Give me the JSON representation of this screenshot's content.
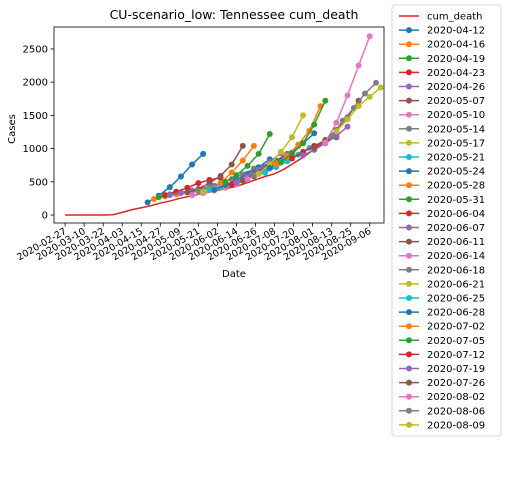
{
  "chart_data": {
    "type": "line",
    "title": "CU-scenario_low: Tennessee cum_death",
    "xlabel": "Date",
    "ylabel": "Cases",
    "ylim": [
      -120,
      2830
    ],
    "xlim": [
      "2020-02-20",
      "2020-09-15"
    ],
    "yticks": [
      0,
      500,
      1000,
      1500,
      2000,
      2500
    ],
    "xtick_labels": [
      "2020-02-27",
      "2020-03-10",
      "2020-03-22",
      "2020-04-03",
      "2020-04-15",
      "2020-04-27",
      "2020-05-09",
      "2020-05-21",
      "2020-06-02",
      "2020-06-14",
      "2020-06-26",
      "2020-07-08",
      "2020-07-20",
      "2020-08-01",
      "2020-08-13",
      "2020-08-25",
      "2020-09-06"
    ],
    "grid": false,
    "legend_position": "outside-right",
    "series": [
      {
        "name": "cum_death",
        "color": "#d62728",
        "marker": false,
        "x": [
          "2020-02-27",
          "2020-03-10",
          "2020-03-22",
          "2020-03-28",
          "2020-04-03",
          "2020-04-10",
          "2020-04-15",
          "2020-04-21",
          "2020-04-27",
          "2020-05-03",
          "2020-05-09",
          "2020-05-15",
          "2020-05-21",
          "2020-05-27",
          "2020-06-02",
          "2020-06-08",
          "2020-06-14",
          "2020-06-20",
          "2020-06-26",
          "2020-07-02",
          "2020-07-08",
          "2020-07-14",
          "2020-07-20",
          "2020-07-26",
          "2020-08-01",
          "2020-08-07",
          "2020-08-13"
        ],
        "y": [
          0,
          0,
          0,
          5,
          40,
          85,
          110,
          140,
          180,
          210,
          250,
          280,
          310,
          340,
          370,
          400,
          430,
          480,
          530,
          580,
          620,
          690,
          780,
          870,
          970,
          1080,
          1180
        ]
      },
      {
        "name": "2020-04-12",
        "color": "#1f77b4",
        "x": [
          "2020-04-19",
          "2020-04-26",
          "2020-05-03",
          "2020-05-10",
          "2020-05-17",
          "2020-05-24"
        ],
        "y": [
          190,
          290,
          420,
          580,
          760,
          920
        ]
      },
      {
        "name": "2020-04-16",
        "color": "#ff7f0e",
        "x": [
          "2020-04-23",
          "2020-04-30",
          "2020-05-07",
          "2020-05-14",
          "2020-05-21",
          "2020-05-28"
        ],
        "y": [
          240,
          280,
          310,
          340,
          370,
          410
        ]
      },
      {
        "name": "2020-04-19",
        "color": "#2ca02c",
        "x": [
          "2020-04-26",
          "2020-05-03",
          "2020-05-10",
          "2020-05-17",
          "2020-05-24",
          "2020-05-31"
        ],
        "y": [
          270,
          310,
          340,
          370,
          400,
          430
        ]
      },
      {
        "name": "2020-04-23",
        "color": "#d62728",
        "x": [
          "2020-04-30",
          "2020-05-07",
          "2020-05-14",
          "2020-05-21",
          "2020-05-28",
          "2020-06-04"
        ],
        "y": [
          300,
          350,
          410,
          480,
          530,
          560
        ]
      },
      {
        "name": "2020-04-26",
        "color": "#9467bd",
        "x": [
          "2020-05-03",
          "2020-05-10",
          "2020-05-17",
          "2020-05-24",
          "2020-05-31",
          "2020-06-07"
        ],
        "y": [
          300,
          330,
          360,
          400,
          440,
          490
        ]
      },
      {
        "name": "2020-05-07",
        "color": "#8c564b",
        "x": [
          "2020-05-14",
          "2020-05-21",
          "2020-05-28",
          "2020-06-04",
          "2020-06-11",
          "2020-06-18"
        ],
        "y": [
          340,
          390,
          480,
          590,
          760,
          1040
        ]
      },
      {
        "name": "2020-05-10",
        "color": "#e377c2",
        "x": [
          "2020-05-17",
          "2020-05-24",
          "2020-05-31",
          "2020-06-07",
          "2020-06-14",
          "2020-06-21"
        ],
        "y": [
          300,
          330,
          370,
          410,
          460,
          540
        ]
      },
      {
        "name": "2020-05-14",
        "color": "#7f7f7f",
        "x": [
          "2020-05-21",
          "2020-05-28",
          "2020-06-04",
          "2020-06-11",
          "2020-06-18",
          "2020-06-25"
        ],
        "y": [
          360,
          420,
          480,
          540,
          610,
          700
        ]
      },
      {
        "name": "2020-05-17",
        "color": "#bcbd22",
        "x": [
          "2020-05-24",
          "2020-05-31",
          "2020-06-07",
          "2020-06-14",
          "2020-06-21",
          "2020-06-28"
        ],
        "y": [
          350,
          390,
          440,
          500,
          570,
          660
        ]
      },
      {
        "name": "2020-05-21",
        "color": "#17becf",
        "x": [
          "2020-05-28",
          "2020-06-04",
          "2020-06-11",
          "2020-06-18",
          "2020-06-25",
          "2020-07-02"
        ],
        "y": [
          380,
          420,
          460,
          520,
          580,
          640
        ]
      },
      {
        "name": "2020-05-24",
        "color": "#1f77b4",
        "x": [
          "2020-05-31",
          "2020-06-07",
          "2020-06-14",
          "2020-06-21",
          "2020-06-28",
          "2020-07-05"
        ],
        "y": [
          380,
          450,
          530,
          620,
          720,
          840
        ]
      },
      {
        "name": "2020-05-28",
        "color": "#ff7f0e",
        "x": [
          "2020-06-04",
          "2020-06-11",
          "2020-06-18",
          "2020-06-25"
        ],
        "y": [
          480,
          640,
          820,
          1040
        ]
      },
      {
        "name": "2020-05-31",
        "color": "#2ca02c",
        "x": [
          "2020-06-07",
          "2020-06-14",
          "2020-06-21",
          "2020-06-28",
          "2020-07-05"
        ],
        "y": [
          500,
          600,
          740,
          920,
          1220
        ]
      },
      {
        "name": "2020-06-04",
        "color": "#d62728",
        "x": [
          "2020-06-11",
          "2020-06-18",
          "2020-06-25",
          "2020-07-02",
          "2020-07-09"
        ],
        "y": [
          460,
          520,
          590,
          660,
          740
        ]
      },
      {
        "name": "2020-06-07",
        "color": "#9467bd",
        "x": [
          "2020-06-14",
          "2020-06-21",
          "2020-06-28",
          "2020-07-05",
          "2020-07-12"
        ],
        "y": [
          490,
          580,
          680,
          800,
          930
        ]
      },
      {
        "name": "2020-06-11",
        "color": "#8c564b",
        "x": [
          "2020-06-18",
          "2020-06-25",
          "2020-07-02",
          "2020-07-09",
          "2020-07-16"
        ],
        "y": [
          520,
          620,
          720,
          820,
          920
        ]
      },
      {
        "name": "2020-06-14",
        "color": "#e377c2",
        "x": [
          "2020-06-21",
          "2020-06-28",
          "2020-07-05",
          "2020-07-12",
          "2020-07-19"
        ],
        "y": [
          540,
          620,
          700,
          790,
          880
        ]
      },
      {
        "name": "2020-06-18",
        "color": "#7f7f7f",
        "x": [
          "2020-06-25",
          "2020-07-02",
          "2020-07-09",
          "2020-07-16",
          "2020-07-23"
        ],
        "y": [
          600,
          690,
          790,
          910,
          1040
        ]
      },
      {
        "name": "2020-06-21",
        "color": "#bcbd22",
        "x": [
          "2020-06-28",
          "2020-07-05",
          "2020-07-12",
          "2020-07-19",
          "2020-07-26"
        ],
        "y": [
          620,
          760,
          950,
          1170,
          1500
        ]
      },
      {
        "name": "2020-06-25",
        "color": "#17becf",
        "x": [
          "2020-07-02",
          "2020-07-09",
          "2020-07-16",
          "2020-07-23",
          "2020-07-30"
        ],
        "y": [
          640,
          720,
          810,
          910,
          1010
        ]
      },
      {
        "name": "2020-06-28",
        "color": "#1f77b4",
        "x": [
          "2020-07-05",
          "2020-07-12",
          "2020-07-19",
          "2020-07-26",
          "2020-08-02"
        ],
        "y": [
          710,
          820,
          940,
          1080,
          1230
        ]
      },
      {
        "name": "2020-07-02",
        "color": "#ff7f0e",
        "x": [
          "2020-07-09",
          "2020-07-16",
          "2020-07-23",
          "2020-07-30",
          "2020-08-06"
        ],
        "y": [
          760,
          890,
          1060,
          1270,
          1640
        ]
      },
      {
        "name": "2020-07-05",
        "color": "#2ca02c",
        "x": [
          "2020-07-12",
          "2020-07-19",
          "2020-07-26",
          "2020-08-02",
          "2020-08-09"
        ],
        "y": [
          800,
          920,
          1080,
          1360,
          1720
        ]
      },
      {
        "name": "2020-07-12",
        "color": "#d62728",
        "x": [
          "2020-07-19",
          "2020-07-26",
          "2020-08-02",
          "2020-08-09",
          "2020-08-16"
        ],
        "y": [
          850,
          950,
          1040,
          1120,
          1170
        ]
      },
      {
        "name": "2020-07-19",
        "color": "#9467bd",
        "x": [
          "2020-07-26",
          "2020-08-02",
          "2020-08-09",
          "2020-08-16",
          "2020-08-23"
        ],
        "y": [
          900,
          980,
          1080,
          1190,
          1330
        ]
      },
      {
        "name": "2020-07-26",
        "color": "#8c564b",
        "x": [
          "2020-08-02",
          "2020-08-09",
          "2020-08-16",
          "2020-08-23",
          "2020-08-30"
        ],
        "y": [
          1010,
          1130,
          1280,
          1470,
          1720
        ]
      },
      {
        "name": "2020-08-02",
        "color": "#e377c2",
        "x": [
          "2020-08-09",
          "2020-08-16",
          "2020-08-23",
          "2020-08-30",
          "2020-09-06"
        ],
        "y": [
          1090,
          1390,
          1800,
          2250,
          2690
        ]
      },
      {
        "name": "2020-08-06",
        "color": "#7f7f7f",
        "x": [
          "2020-08-13",
          "2020-08-20",
          "2020-08-27",
          "2020-09-03",
          "2020-09-10"
        ],
        "y": [
          1180,
          1420,
          1610,
          1830,
          1990
        ]
      },
      {
        "name": "2020-08-09",
        "color": "#bcbd22",
        "x": [
          "2020-08-16",
          "2020-08-23",
          "2020-08-30",
          "2020-09-06",
          "2020-09-13"
        ],
        "y": [
          1260,
          1440,
          1640,
          1780,
          1920
        ]
      }
    ]
  }
}
